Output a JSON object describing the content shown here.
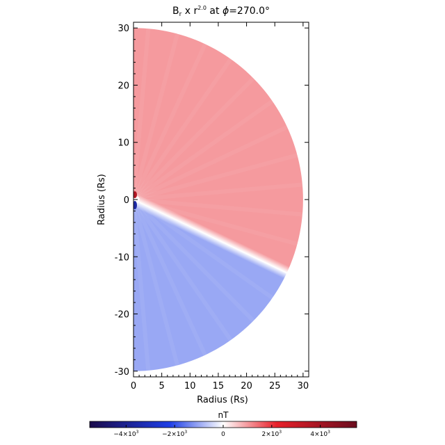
{
  "chart_data": {
    "type": "heatmap",
    "title": {
      "quantity": "B",
      "quantity_sub": "r",
      "mid": " x r",
      "exponent": "2.0",
      "at": " at ",
      "phi": "ϕ",
      "value": "=270.0°"
    },
    "xlabel": "Radius (Rs)",
    "ylabel": "Radius (Rs)",
    "xlim": [
      0,
      31
    ],
    "ylim": [
      -31,
      31
    ],
    "xticks": [
      0,
      5,
      10,
      15,
      20,
      25,
      30
    ],
    "yticks": [
      -30,
      -20,
      -10,
      0,
      10,
      20,
      30
    ],
    "domain": {
      "shape": "half-disk",
      "outer_radius": 30,
      "angle_from_deg": -90,
      "angle_to_deg": 90
    },
    "current_sheet_angle_deg": -25.5,
    "values_north": 1000,
    "values_south": -1000,
    "colorbar": {
      "label": "nT",
      "range": [
        -5500,
        5500
      ],
      "ticks": [
        {
          "value": -4000,
          "mantissa": "−4×10",
          "exp": "3"
        },
        {
          "value": -2000,
          "mantissa": "−2×10",
          "exp": "3"
        },
        {
          "value": 0,
          "mantissa": "0",
          "exp": ""
        },
        {
          "value": 2000,
          "mantissa": "2×10",
          "exp": "3"
        },
        {
          "value": 4000,
          "mantissa": "4×10",
          "exp": "3"
        }
      ],
      "colors": [
        "#1a0a4a",
        "#1f3fe6",
        "#ffffff",
        "#e8202a",
        "#6a0d1e"
      ]
    }
  }
}
